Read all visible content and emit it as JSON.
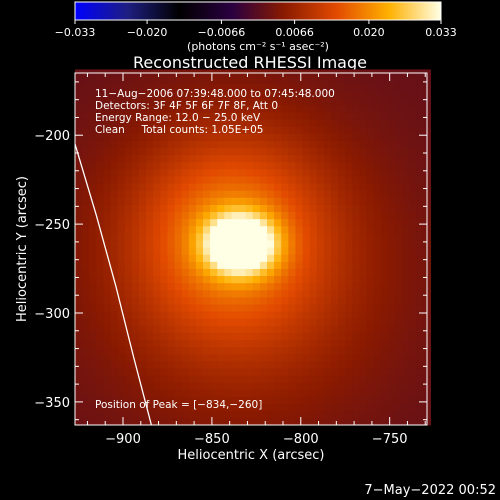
{
  "chart_data": {
    "type": "heatmap",
    "title": "Reconstructed RHESSI Image",
    "xlabel": "Heliocentric X (arcsec)",
    "ylabel": "Heliocentric Y (arcsec)",
    "xlim": [
      -927,
      -729
    ],
    "ylim": [
      -363,
      -165
    ],
    "x_ticks": [
      -900,
      -850,
      -800,
      -750
    ],
    "y_ticks": [
      -200,
      -250,
      -300,
      -350
    ],
    "x_tick_labels": [
      "−900",
      "−850",
      "−800",
      "−750"
    ],
    "y_tick_labels": [
      "−200",
      "−250",
      "−300",
      "−350"
    ],
    "colorbar": {
      "range": [
        -0.033,
        0.033
      ],
      "ticks": [
        -0.033,
        -0.02,
        -0.0066,
        0.0066,
        0.02,
        0.033
      ],
      "tick_labels": [
        "−0.033",
        "−0.020",
        "−0.0066",
        "0.0066",
        "0.020",
        "0.033"
      ],
      "unit_label": "(photons cm⁻² s⁻¹ asec⁻²)"
    },
    "annotations": [
      "11−Aug−2006 07:39:48.000 to 07:45:48.000",
      "Detectors: 3F 4F 5F 6F 7F 8F, Att 0",
      "Energy Range: 12.0 − 25.0 keV",
      "Clean     Total counts: 1.05E+05"
    ],
    "peak_label": "Position of Peak = [−834,−260]",
    "peak": [
      -834,
      -260
    ],
    "peak_value": 0.033,
    "sources": [
      {
        "x": -834,
        "y": -261,
        "sigma_x": 13,
        "sigma_y": 11,
        "amp": 1.0
      },
      {
        "x": -840,
        "y": -255,
        "sigma_x": 38,
        "sigma_y": 40,
        "amp": 0.42
      },
      {
        "x": -830,
        "y": -285,
        "sigma_x": 55,
        "sigma_y": 55,
        "amp": 0.16
      }
    ],
    "background_level": 0.08,
    "pixel_size_arcsec": 4,
    "limb_curve": [
      [
        -927,
        -205
      ],
      [
        -915,
        -245
      ],
      [
        -904,
        -285
      ],
      [
        -894,
        -325
      ],
      [
        -884,
        -363
      ]
    ],
    "colors": {
      "axes": "#ffffff",
      "limb": "#ffffff",
      "colormap": [
        "#0000ff",
        "#1e1e82",
        "#000000",
        "#2a0040",
        "#8a1a00",
        "#e24a00",
        "#ffb000",
        "#ffffe6"
      ]
    }
  },
  "footer": {
    "date": "7−May−2022 00:52"
  }
}
